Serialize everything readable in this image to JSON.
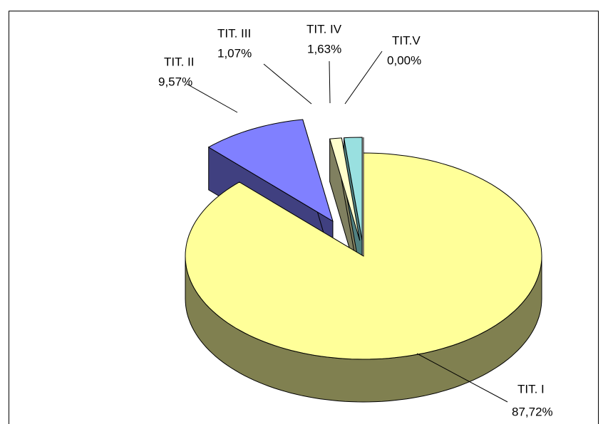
{
  "chart_data": {
    "type": "pie",
    "categories": [
      "TIT. I",
      "TIT. II",
      "TIT. III",
      "TIT. IV",
      "TIT.V"
    ],
    "values": [
      87.72,
      9.57,
      1.07,
      1.63,
      0.0
    ],
    "value_labels": [
      "87,72%",
      "9,57%",
      "1,07%",
      "1,63%",
      "0,00%"
    ],
    "colors": [
      "#ffff99",
      "#8080ff",
      "#ffffcc",
      "#99e0e0",
      "#60c0c0"
    ],
    "side_colors": [
      "#808050",
      "#404080",
      "#808060",
      "#508080",
      "#306060"
    ]
  }
}
